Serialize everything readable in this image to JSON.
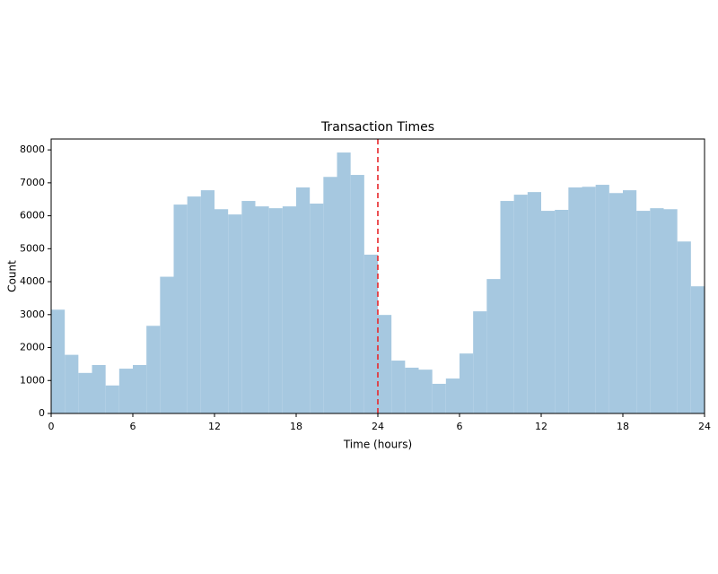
{
  "chart_data": {
    "type": "histogram",
    "title": "Transaction Times",
    "xlabel": "Time (hours)",
    "ylabel": "Count",
    "bins": [
      0,
      1,
      2,
      3,
      4,
      5,
      6,
      7,
      8,
      9,
      10,
      11,
      12,
      13,
      14,
      15,
      16,
      17,
      18,
      19,
      20,
      21,
      22,
      23,
      24,
      25,
      26,
      27,
      28,
      29,
      30,
      31,
      32,
      33,
      34,
      35,
      36,
      37,
      38,
      39,
      40,
      41,
      42,
      43,
      44,
      45,
      46,
      47,
      48
    ],
    "values": [
      3150,
      1780,
      1230,
      1470,
      850,
      1360,
      1470,
      2660,
      4150,
      6340,
      6585,
      6775,
      6200,
      6040,
      6450,
      6285,
      6230,
      6285,
      6860,
      6370,
      7180,
      7920,
      7240,
      4820,
      2990,
      1605,
      1390,
      1330,
      900,
      1060,
      1820,
      3100,
      4080,
      6450,
      6640,
      6720,
      6150,
      6180,
      6860,
      6880,
      6940,
      6690,
      6775,
      6150,
      6230,
      6200,
      5220,
      3860
    ],
    "color": "#a6c8e0",
    "xlim": [
      0,
      48
    ],
    "ylim": [
      0,
      8330
    ],
    "xticks": [
      0,
      6,
      12,
      18,
      24,
      {
        "value": 30,
        "label": "6"
      },
      {
        "value": 36,
        "label": "12"
      },
      {
        "value": 42,
        "label": "18"
      },
      {
        "value": 48,
        "label": "24"
      }
    ],
    "yticks": [
      0,
      1000,
      2000,
      3000,
      4000,
      5000,
      6000,
      7000,
      8000
    ],
    "vline": {
      "x": 24,
      "color": "#e8262a",
      "style": "dashed"
    }
  }
}
